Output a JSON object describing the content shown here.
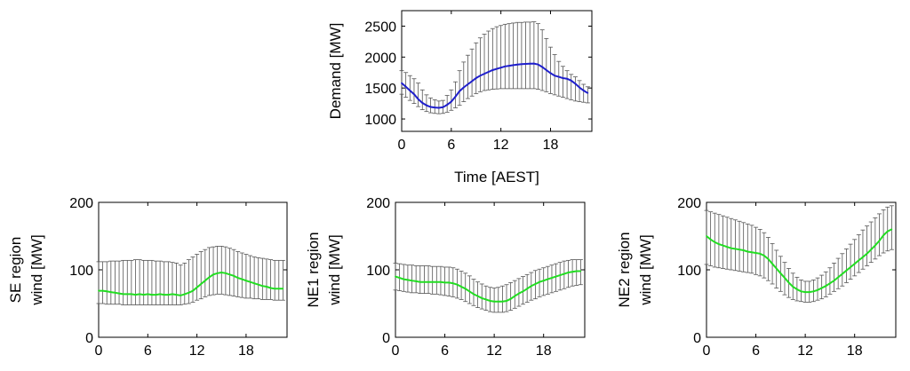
{
  "chart_data": [
    {
      "type": "line",
      "title": "",
      "xlabel": "Time [AEST]",
      "ylabel": "Demand [MW]",
      "xlim": [
        0,
        23
      ],
      "ylim": [
        800,
        2750
      ],
      "xticks": [
        0,
        6,
        12,
        18
      ],
      "yticks": [
        1000,
        1500,
        2000,
        2500
      ],
      "error_bars": true,
      "line_color": "#1f1fcc",
      "x": [
        0,
        0.5,
        1,
        1.5,
        2,
        2.5,
        3,
        3.5,
        4,
        4.5,
        5,
        5.5,
        6,
        6.5,
        7,
        7.5,
        8,
        8.5,
        9,
        9.5,
        10,
        10.5,
        11,
        11.5,
        12,
        12.5,
        13,
        13.5,
        14,
        14.5,
        15,
        15.5,
        16,
        16.5,
        17,
        17.5,
        18,
        18.5,
        19,
        19.5,
        20,
        20.5,
        21,
        21.5,
        22,
        22.5
      ],
      "series": [
        {
          "values": [
            1580,
            1520,
            1460,
            1400,
            1320,
            1260,
            1220,
            1195,
            1185,
            1180,
            1190,
            1230,
            1280,
            1360,
            1450,
            1510,
            1560,
            1610,
            1660,
            1700,
            1730,
            1760,
            1790,
            1810,
            1830,
            1850,
            1860,
            1870,
            1880,
            1885,
            1890,
            1892,
            1895,
            1880,
            1840,
            1790,
            1740,
            1700,
            1680,
            1660,
            1650,
            1620,
            1570,
            1510,
            1460,
            1420
          ],
          "upper": [
            1780,
            1750,
            1700,
            1650,
            1580,
            1470,
            1390,
            1340,
            1310,
            1290,
            1300,
            1380,
            1470,
            1600,
            1780,
            1920,
            2030,
            2130,
            2230,
            2310,
            2370,
            2420,
            2460,
            2490,
            2510,
            2530,
            2540,
            2550,
            2560,
            2560,
            2565,
            2565,
            2570,
            2540,
            2440,
            2300,
            2160,
            2040,
            1930,
            1850,
            1780,
            1720,
            1680,
            1620,
            1560,
            1520
          ],
          "lower": [
            1400,
            1350,
            1300,
            1250,
            1200,
            1150,
            1120,
            1100,
            1090,
            1085,
            1090,
            1110,
            1140,
            1180,
            1220,
            1280,
            1330,
            1370,
            1410,
            1440,
            1460,
            1470,
            1480,
            1485,
            1490,
            1490,
            1490,
            1490,
            1490,
            1490,
            1490,
            1490,
            1490,
            1480,
            1460,
            1440,
            1410,
            1390,
            1370,
            1350,
            1330,
            1310,
            1290,
            1280,
            1270,
            1260
          ]
        }
      ]
    },
    {
      "type": "line",
      "title": "",
      "xlabel": "",
      "ylabel": "SE region wind [MW]",
      "ylabel_lines": [
        "SE region",
        "wind [MW]"
      ],
      "xlim": [
        0,
        23
      ],
      "ylim": [
        0,
        200
      ],
      "xticks": [
        0,
        6,
        12,
        18
      ],
      "yticks": [
        0,
        100,
        200
      ],
      "error_bars": true,
      "line_color": "#22dd22",
      "x": [
        0,
        0.5,
        1,
        1.5,
        2,
        2.5,
        3,
        3.5,
        4,
        4.5,
        5,
        5.5,
        6,
        6.5,
        7,
        7.5,
        8,
        8.5,
        9,
        9.5,
        10,
        10.5,
        11,
        11.5,
        12,
        12.5,
        13,
        13.5,
        14,
        14.5,
        15,
        15.5,
        16,
        16.5,
        17,
        17.5,
        18,
        18.5,
        19,
        19.5,
        20,
        20.5,
        21,
        21.5,
        22,
        22.5
      ],
      "series": [
        {
          "values": [
            69,
            69,
            68,
            67,
            66,
            65,
            64,
            64,
            64,
            63,
            64,
            63,
            64,
            63,
            63,
            64,
            63,
            63,
            64,
            63,
            62,
            64,
            66,
            69,
            74,
            79,
            84,
            89,
            93,
            95,
            96,
            95,
            93,
            91,
            88,
            86,
            84,
            82,
            80,
            78,
            76,
            75,
            73,
            72,
            72,
            72
          ],
          "upper": [
            112,
            112,
            112,
            113,
            113,
            113,
            114,
            114,
            114,
            115,
            115,
            114,
            114,
            114,
            113,
            113,
            112,
            112,
            111,
            110,
            107,
            110,
            115,
            119,
            123,
            127,
            130,
            133,
            134,
            135,
            135,
            134,
            132,
            130,
            127,
            125,
            123,
            121,
            119,
            118,
            117,
            116,
            115,
            114,
            114,
            114
          ],
          "lower": [
            50,
            50,
            49,
            49,
            49,
            49,
            48,
            48,
            48,
            48,
            48,
            48,
            48,
            48,
            48,
            48,
            48,
            48,
            48,
            48,
            48,
            49,
            50,
            52,
            55,
            57,
            60,
            62,
            63,
            64,
            64,
            63,
            62,
            61,
            60,
            59,
            58,
            58,
            57,
            57,
            56,
            56,
            56,
            55,
            55,
            55
          ]
        }
      ]
    },
    {
      "type": "line",
      "title": "",
      "xlabel": "",
      "ylabel": "NE1 region wind [MW]",
      "ylabel_lines": [
        "NE1 region",
        "wind [MW]"
      ],
      "xlim": [
        0,
        23
      ],
      "ylim": [
        0,
        200
      ],
      "xticks": [
        0,
        6,
        12,
        18
      ],
      "yticks": [
        0,
        100,
        200
      ],
      "error_bars": true,
      "line_color": "#22dd22",
      "x": [
        0,
        0.5,
        1,
        1.5,
        2,
        2.5,
        3,
        3.5,
        4,
        4.5,
        5,
        5.5,
        6,
        6.5,
        7,
        7.5,
        8,
        8.5,
        9,
        9.5,
        10,
        10.5,
        11,
        11.5,
        12,
        12.5,
        13,
        13.5,
        14,
        14.5,
        15,
        15.5,
        16,
        16.5,
        17,
        17.5,
        18,
        18.5,
        19,
        19.5,
        20,
        20.5,
        21,
        21.5,
        22,
        22.5
      ],
      "series": [
        {
          "values": [
            90,
            88,
            86,
            85,
            84,
            83,
            82,
            82,
            82,
            82,
            82,
            82,
            81,
            81,
            80,
            78,
            75,
            72,
            68,
            64,
            61,
            58,
            56,
            54,
            53,
            53,
            53,
            54,
            57,
            61,
            65,
            68,
            72,
            76,
            79,
            82,
            84,
            86,
            88,
            90,
            92,
            94,
            96,
            97,
            98,
            98
          ],
          "upper": [
            110,
            109,
            108,
            107,
            107,
            106,
            106,
            106,
            106,
            105,
            105,
            105,
            104,
            104,
            103,
            101,
            98,
            95,
            91,
            86,
            82,
            79,
            76,
            74,
            73,
            74,
            76,
            78,
            81,
            84,
            87,
            90,
            93,
            96,
            99,
            101,
            103,
            105,
            107,
            109,
            111,
            113,
            114,
            115,
            115,
            115
          ],
          "lower": [
            70,
            69,
            68,
            67,
            66,
            66,
            65,
            65,
            65,
            64,
            64,
            63,
            62,
            61,
            60,
            58,
            56,
            53,
            50,
            47,
            44,
            42,
            40,
            38,
            37,
            37,
            37,
            38,
            40,
            43,
            46,
            49,
            52,
            55,
            57,
            60,
            62,
            64,
            66,
            68,
            70,
            72,
            74,
            76,
            77,
            78
          ]
        }
      ]
    },
    {
      "type": "line",
      "title": "",
      "xlabel": "",
      "ylabel": "NE2 region wind [MW]",
      "ylabel_lines": [
        "NE2 region",
        "wind [MW]"
      ],
      "xlim": [
        0,
        23
      ],
      "ylim": [
        0,
        200
      ],
      "xticks": [
        0,
        6,
        12,
        18
      ],
      "yticks": [
        0,
        100,
        200
      ],
      "error_bars": true,
      "line_color": "#22dd22",
      "x": [
        0,
        0.5,
        1,
        1.5,
        2,
        2.5,
        3,
        3.5,
        4,
        4.5,
        5,
        5.5,
        6,
        6.5,
        7,
        7.5,
        8,
        8.5,
        9,
        9.5,
        10,
        10.5,
        11,
        11.5,
        12,
        12.5,
        13,
        13.5,
        14,
        14.5,
        15,
        15.5,
        16,
        16.5,
        17,
        17.5,
        18,
        18.5,
        19,
        19.5,
        20,
        20.5,
        21,
        21.5,
        22,
        22.5
      ],
      "series": [
        {
          "values": [
            150,
            145,
            141,
            138,
            136,
            134,
            132,
            131,
            130,
            129,
            127,
            126,
            125,
            124,
            121,
            116,
            109,
            102,
            95,
            88,
            81,
            75,
            71,
            68,
            67,
            67,
            68,
            70,
            73,
            76,
            80,
            84,
            89,
            94,
            99,
            104,
            109,
            114,
            119,
            124,
            130,
            136,
            143,
            151,
            157,
            160
          ],
          "upper": [
            188,
            186,
            184,
            182,
            180,
            178,
            176,
            174,
            172,
            170,
            168,
            166,
            163,
            160,
            155,
            148,
            139,
            129,
            120,
            111,
            102,
            95,
            89,
            85,
            83,
            83,
            85,
            88,
            92,
            97,
            103,
            110,
            117,
            124,
            131,
            138,
            145,
            152,
            159,
            165,
            171,
            177,
            183,
            189,
            193,
            195
          ],
          "lower": [
            108,
            106,
            104,
            103,
            102,
            101,
            100,
            99,
            98,
            97,
            96,
            95,
            93,
            91,
            88,
            84,
            79,
            73,
            68,
            63,
            59,
            56,
            54,
            53,
            52,
            52,
            53,
            55,
            57,
            60,
            64,
            68,
            72,
            76,
            81,
            86,
            91,
            96,
            101,
            106,
            111,
            116,
            121,
            125,
            128,
            130
          ]
        }
      ]
    }
  ]
}
